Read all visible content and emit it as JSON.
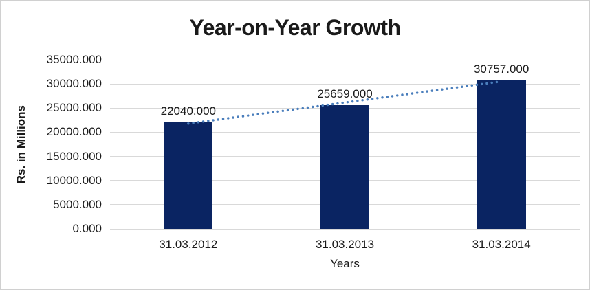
{
  "chart_data": {
    "type": "bar",
    "title": "Year-on-Year Growth",
    "ylabel": "Rs. in Millions",
    "xlabel": "Years",
    "categories": [
      "31.03.2012",
      "31.03.2013",
      "31.03.2014"
    ],
    "values": [
      22040,
      25659,
      30757
    ],
    "value_labels": [
      "22040.000",
      "25659.000",
      "30757.000"
    ],
    "ylim": [
      0,
      35000
    ],
    "ytick_step": 5000,
    "ytick_labels": [
      "0.000",
      "5000.000",
      "10000.000",
      "15000.000",
      "20000.000",
      "25000.000",
      "30000.000",
      "35000.000"
    ],
    "grid": true,
    "legend": "none",
    "trendline": {
      "type": "linear",
      "style": "dotted"
    },
    "colors": {
      "bar": "#0a2462",
      "trendline": "#4a7ebc",
      "gridline": "#d9d9d9",
      "text": "#1a1a1a",
      "frame_border": "#d0d0d0",
      "background": "#ffffff"
    }
  }
}
